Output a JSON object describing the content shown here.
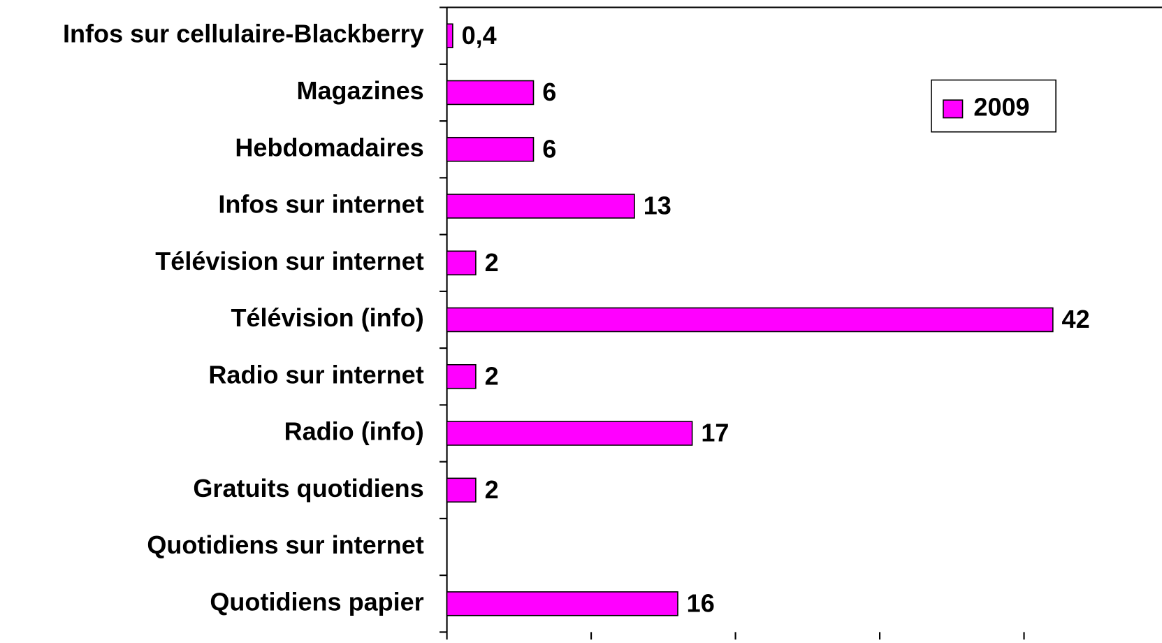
{
  "chart_data": {
    "type": "barh",
    "categories": [
      "Infos sur cellulaire-Blackberry",
      "Magazines",
      "Hebdomadaires",
      "Infos sur internet",
      "Télévision sur internet",
      "Télévision (info)",
      "Radio sur internet",
      "Radio (info)",
      "Gratuits quotidiens",
      "Quotidiens sur internet",
      "Quotidiens papier"
    ],
    "series": [
      {
        "name": "2009",
        "color": "#ff00ff",
        "values": [
          0.4,
          6,
          6,
          13,
          2,
          42,
          2,
          17,
          2,
          null,
          16
        ],
        "value_labels": [
          "0,4",
          "6",
          "6",
          "13",
          "2",
          "42",
          "2",
          "17",
          "2",
          null,
          "16"
        ]
      }
    ],
    "xlim": [
      0,
      50
    ],
    "xticks": [
      0,
      10,
      20,
      30,
      40,
      50
    ],
    "legend": "upper right"
  }
}
